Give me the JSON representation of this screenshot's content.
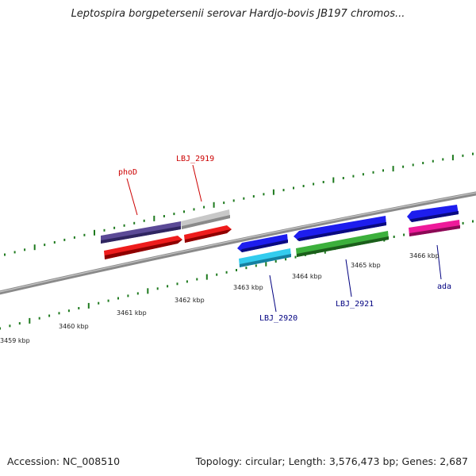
{
  "title": "Leptospira borgpetersenii serovar Hardjo-bovis JB197 chromos...",
  "footer": {
    "accession": "Accession: NC_008510",
    "summary": "Topology: circular; Length: 3,576,473 bp; Genes: 2,687"
  },
  "colors": {
    "tick_color": "#1e7a1e",
    "backbone": "#7f7f7f",
    "label_top": "#cc0000",
    "label_bottom": "#000080"
  },
  "scale_labels": [
    "3459 kbp",
    "3460 kbp",
    "3461 kbp",
    "3462 kbp",
    "3463 kbp",
    "3464 kbp",
    "3465 kbp",
    "3466 kbp"
  ],
  "genes": [
    {
      "label": "phoD",
      "label_color": "#cc0000",
      "fill": "#5b4a96",
      "dark": "#2f2560",
      "strand": "top-outer"
    },
    {
      "label": "",
      "fill": "#c8c8c8",
      "dark": "#8a8a8a",
      "strand": "top-outer"
    },
    {
      "label": "",
      "fill": "#ee1c1c",
      "dark": "#8e0000",
      "strand": "top-inner"
    },
    {
      "label": "LBJ_2919",
      "label_color": "#cc0000",
      "fill": "#ee1c1c",
      "dark": "#8e0000",
      "strand": "top-inner"
    },
    {
      "label": "LBJ_2920",
      "label_color": "#000080",
      "fill": "#1d1dee",
      "dark": "#0a0a80",
      "strand": "bottom-outer"
    },
    {
      "label": "",
      "fill": "#33ccee",
      "dark": "#1580a0",
      "strand": "bottom-inner"
    },
    {
      "label": "",
      "fill": "#1d1dee",
      "dark": "#0a0a80",
      "strand": "bottom-outer"
    },
    {
      "label": "LBJ_2921",
      "label_color": "#000080",
      "fill": "#3cb03c",
      "dark": "#1b5e1b",
      "strand": "bottom-inner"
    },
    {
      "label": "",
      "fill": "#1d1dee",
      "dark": "#0a0a80",
      "strand": "bottom-outer"
    },
    {
      "label": "ada",
      "label_color": "#000080",
      "fill": "#ee1a9a",
      "dark": "#8a0a55",
      "strand": "bottom-inner"
    }
  ]
}
